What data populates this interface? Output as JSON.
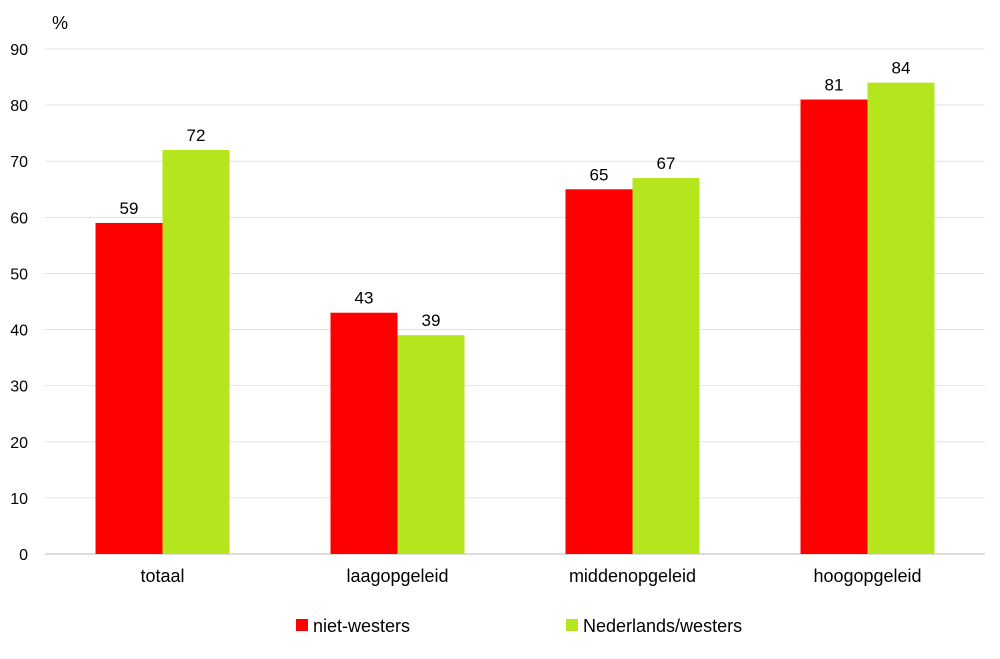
{
  "chart_data": {
    "type": "bar",
    "title": "",
    "ylabel": "%",
    "xlabel": "",
    "ylim": [
      0,
      90
    ],
    "yticks": [
      0,
      10,
      20,
      30,
      40,
      50,
      60,
      70,
      80,
      90
    ],
    "grid": true,
    "legend_position": "bottom",
    "categories": [
      "totaal",
      "laagopgeleid",
      "middenopgeleid",
      "hoogopgeleid"
    ],
    "series": [
      {
        "name": "niet-westers",
        "color": "#ff0000",
        "values": [
          59,
          43,
          65,
          81
        ]
      },
      {
        "name": "Nederlands/westers",
        "color": "#b5e61d",
        "values": [
          72,
          39,
          67,
          84
        ]
      }
    ]
  }
}
